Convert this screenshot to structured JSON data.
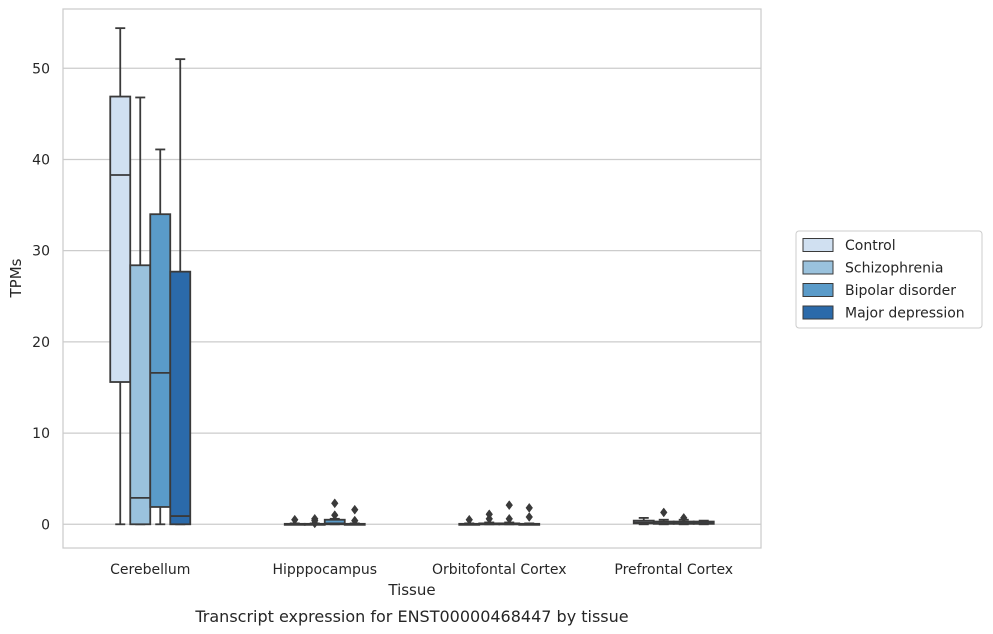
{
  "chart_data": {
    "type": "box",
    "xlabel": "Tissue",
    "ylabel": "TPMs",
    "caption": "Transcript expression for ENST00000468447 by tissue",
    "ylim": [
      -2.6,
      56.5
    ],
    "yticks": [
      0,
      10,
      20,
      30,
      40,
      50
    ],
    "grid": "horizontal",
    "legend_position": "right",
    "categories": [
      "Cerebellum",
      "Hipppocampus",
      "Orbitofontal Cortex",
      "Prefrontal Cortex"
    ],
    "series": [
      {
        "name": "Control",
        "color": "#d0e0f1",
        "boxes": [
          {
            "whislo": 0,
            "q1": 15.6,
            "med": 38.3,
            "q3": 46.9,
            "whishi": 54.4,
            "fliers": []
          },
          {
            "whislo": 0,
            "q1": 0,
            "med": 0,
            "q3": 0.05,
            "whishi": 0.1,
            "fliers": [
              0.5
            ]
          },
          {
            "whislo": 0,
            "q1": 0,
            "med": 0,
            "q3": 0.05,
            "whishi": 0.1,
            "fliers": [
              0.5
            ]
          },
          {
            "whislo": 0,
            "q1": 0.1,
            "med": 0.2,
            "q3": 0.4,
            "whishi": 0.7,
            "fliers": []
          }
        ]
      },
      {
        "name": "Schizophrenia",
        "color": "#9ac2dd",
        "boxes": [
          {
            "whislo": 0,
            "q1": 0,
            "med": 2.9,
            "q3": 28.4,
            "whishi": 46.8,
            "fliers": []
          },
          {
            "whislo": 0,
            "q1": 0,
            "med": 0,
            "q3": 0.05,
            "whishi": 0.1,
            "fliers": [
              0.1,
              0.4,
              0.6
            ]
          },
          {
            "whislo": 0,
            "q1": 0,
            "med": 0.05,
            "q3": 0.1,
            "whishi": 0.2,
            "fliers": [
              0.6,
              1.1
            ]
          },
          {
            "whislo": 0,
            "q1": 0.05,
            "med": 0.1,
            "q3": 0.3,
            "whishi": 0.5,
            "fliers": [
              1.3
            ]
          }
        ]
      },
      {
        "name": "Bipolar disorder",
        "color": "#5a9bc9",
        "boxes": [
          {
            "whislo": 0,
            "q1": 1.9,
            "med": 16.6,
            "q3": 34,
            "whishi": 41.1,
            "fliers": []
          },
          {
            "whislo": 0,
            "q1": 0,
            "med": 0.1,
            "q3": 0.5,
            "whishi": 0.6,
            "fliers": [
              1.0,
              2.3
            ]
          },
          {
            "whislo": 0,
            "q1": 0,
            "med": 0.05,
            "q3": 0.1,
            "whishi": 0.2,
            "fliers": [
              0.6,
              2.1
            ]
          },
          {
            "whislo": 0,
            "q1": 0.05,
            "med": 0.1,
            "q3": 0.3,
            "whishi": 0.5,
            "fliers": [
              0.7
            ]
          }
        ]
      },
      {
        "name": "Major depression",
        "color": "#2b6aaa",
        "boxes": [
          {
            "whislo": 0,
            "q1": 0,
            "med": 0.9,
            "q3": 27.7,
            "whishi": 51,
            "fliers": []
          },
          {
            "whislo": 0,
            "q1": 0,
            "med": 0,
            "q3": 0.05,
            "whishi": 0.1,
            "fliers": [
              0.4,
              1.6
            ]
          },
          {
            "whislo": 0,
            "q1": 0,
            "med": 0,
            "q3": 0.05,
            "whishi": 0.1,
            "fliers": [
              0.8,
              1.8
            ]
          },
          {
            "whislo": 0,
            "q1": 0.05,
            "med": 0.1,
            "q3": 0.3,
            "whishi": 0.4,
            "fliers": []
          }
        ]
      }
    ]
  }
}
